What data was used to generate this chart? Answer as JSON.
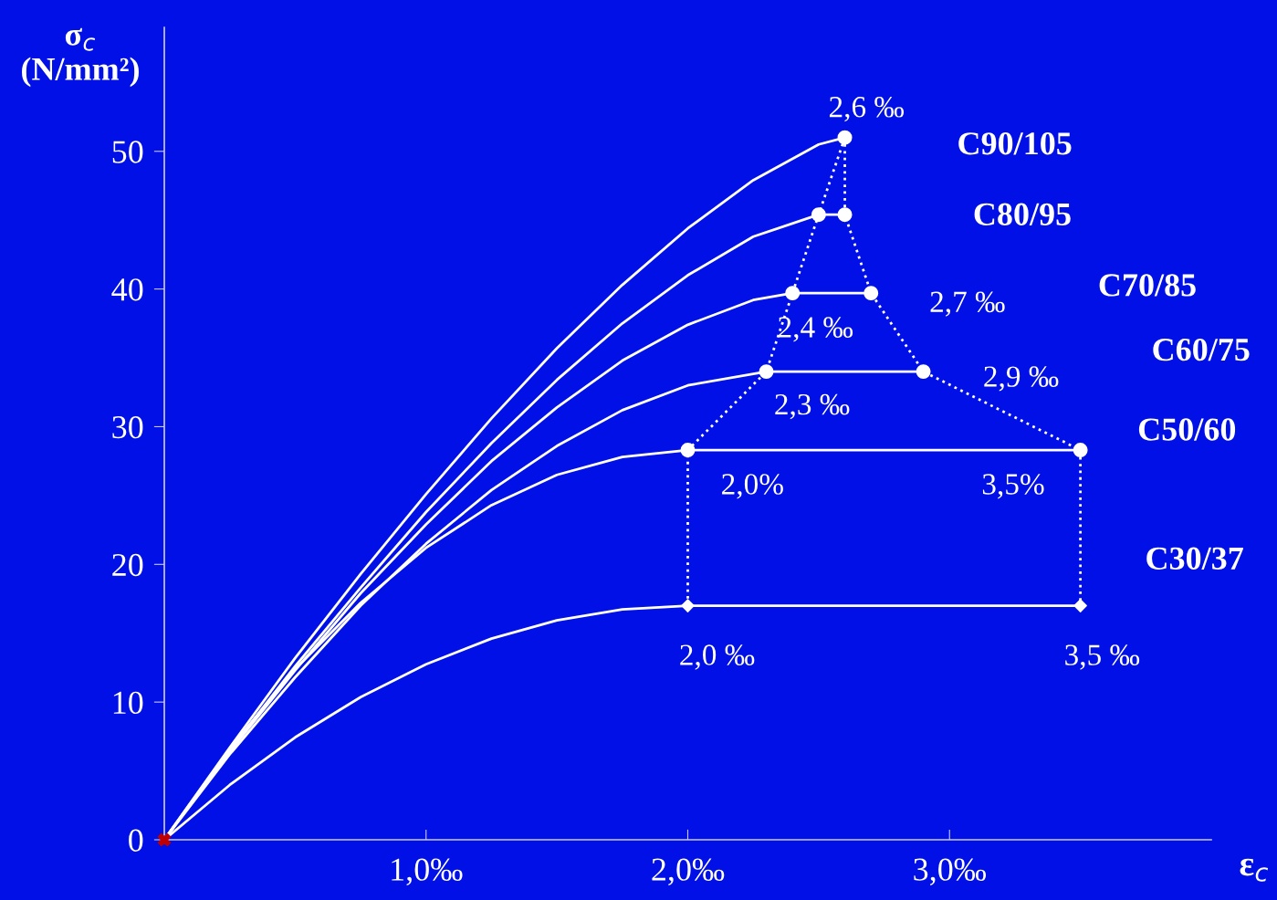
{
  "chart_data": {
    "type": "line",
    "xlabel": "ε$_{c}$",
    "ylabel": "σ$_{c}$\n(N/mm²)",
    "xlim": [
      0,
      4.0
    ],
    "ylim": [
      0,
      59
    ],
    "xticks": [
      {
        "value": 1,
        "label": "1,0‰"
      },
      {
        "value": 2,
        "label": "2,0‰"
      },
      {
        "value": 3,
        "label": "3,0‰"
      }
    ],
    "yticks": [
      0,
      10,
      20,
      30,
      40,
      50
    ],
    "grid": false,
    "legend": false,
    "series": [
      {
        "name": "C30/37",
        "color": "#ffffff",
        "line_style": "solid",
        "x": [
          0,
          0.25,
          0.5,
          0.75,
          1.0,
          1.25,
          1.5,
          1.75,
          2.0,
          3.5
        ],
        "values": [
          0,
          3.98,
          7.44,
          10.36,
          12.75,
          14.61,
          15.94,
          16.73,
          17,
          17
        ]
      },
      {
        "name": "C50/60",
        "color": "#ffffff",
        "line_style": "solid",
        "x": [
          0,
          0.25,
          0.5,
          0.75,
          1.0,
          1.25,
          1.5,
          1.75,
          2.0,
          3.5
        ],
        "values": [
          0,
          6.6,
          12.4,
          17.2,
          21.2,
          24.3,
          26.5,
          27.8,
          28.3,
          28.3
        ]
      },
      {
        "name": "C60/75",
        "color": "#ffffff",
        "line_style": "solid",
        "x": [
          0,
          0.25,
          0.5,
          0.75,
          1.0,
          1.25,
          1.5,
          1.75,
          2.0,
          2.3,
          2.9
        ],
        "values": [
          0,
          6.2,
          11.8,
          17.0,
          21.5,
          25.4,
          28.6,
          31.2,
          33.0,
          34,
          34
        ]
      },
      {
        "name": "C70/85",
        "color": "#ffffff",
        "line_style": "solid",
        "x": [
          0,
          0.25,
          0.5,
          0.75,
          1.0,
          1.25,
          1.5,
          1.75,
          2.0,
          2.25,
          2.4,
          2.7
        ],
        "values": [
          0,
          6.4,
          12.3,
          17.9,
          22.9,
          27.5,
          31.4,
          34.8,
          37.4,
          39.2,
          39.7,
          39.7
        ]
      },
      {
        "name": "C80/95",
        "color": "#ffffff",
        "line_style": "solid",
        "x": [
          0,
          0.25,
          0.5,
          0.75,
          1.0,
          1.25,
          1.5,
          1.75,
          2.0,
          2.25,
          2.5,
          2.6
        ],
        "values": [
          0,
          6.5,
          12.6,
          18.3,
          23.8,
          28.8,
          33.4,
          37.5,
          41.0,
          43.8,
          45.4,
          45.4
        ]
      },
      {
        "name": "C90/105",
        "color": "#ffffff",
        "line_style": "solid",
        "x": [
          0,
          0.25,
          0.5,
          0.75,
          1.0,
          1.25,
          1.5,
          1.75,
          2.0,
          2.25,
          2.5,
          2.6
        ],
        "values": [
          0,
          6.7,
          13.2,
          19.3,
          25.1,
          30.6,
          35.7,
          40.3,
          44.4,
          47.9,
          50.5,
          51
        ]
      },
      {
        "color": "#ffffff",
        "line_style": "dotted",
        "x": [
          2.6,
          2.5,
          2.4,
          2.3,
          2.0,
          2.0
        ],
        "values": [
          51,
          45.4,
          39.7,
          34,
          28.3,
          17
        ]
      },
      {
        "color": "#ffffff",
        "line_style": "dotted",
        "x": [
          2.6,
          2.6,
          2.7,
          2.9,
          3.5,
          3.5
        ],
        "values": [
          51,
          45.4,
          39.7,
          34,
          28.3,
          17
        ]
      },
      {
        "type": "scatter",
        "color": "#ffffff",
        "marker": "circle",
        "x": [
          2.6,
          2.5,
          2.6,
          2.4,
          2.7,
          2.3,
          2.9,
          2.0,
          3.5
        ],
        "values": [
          51,
          45.4,
          45.4,
          39.7,
          39.7,
          34,
          34,
          28.3,
          28.3
        ]
      },
      {
        "type": "scatter",
        "color": "#ffffff",
        "marker": "diamond",
        "x": [
          2.0,
          3.5
        ],
        "values": [
          17,
          17
        ]
      },
      {
        "type": "scatter",
        "color": "#c00000",
        "marker": "cross",
        "x": [
          0
        ],
        "values": [
          0
        ]
      }
    ],
    "annotations": [
      {
        "text": "2,6 ‰",
        "x": 2.6,
        "y": 51
      },
      {
        "text": "2,7 ‰",
        "x": 2.7,
        "y": 39.7
      },
      {
        "text": "2,4 ‰",
        "x": 2.4,
        "y": 39.7
      },
      {
        "text": "2,9 ‰",
        "x": 2.9,
        "y": 34
      },
      {
        "text": "2,3 ‰",
        "x": 2.3,
        "y": 34
      },
      {
        "text": "2,0%",
        "x": 2.0,
        "y": 28.3
      },
      {
        "text": "3,5%",
        "x": 3.5,
        "y": 28.3
      },
      {
        "text": "2,0 ‰",
        "x": 2.0,
        "y": 17
      },
      {
        "text": "3,5 ‰",
        "x": 3.5,
        "y": 17
      }
    ]
  }
}
